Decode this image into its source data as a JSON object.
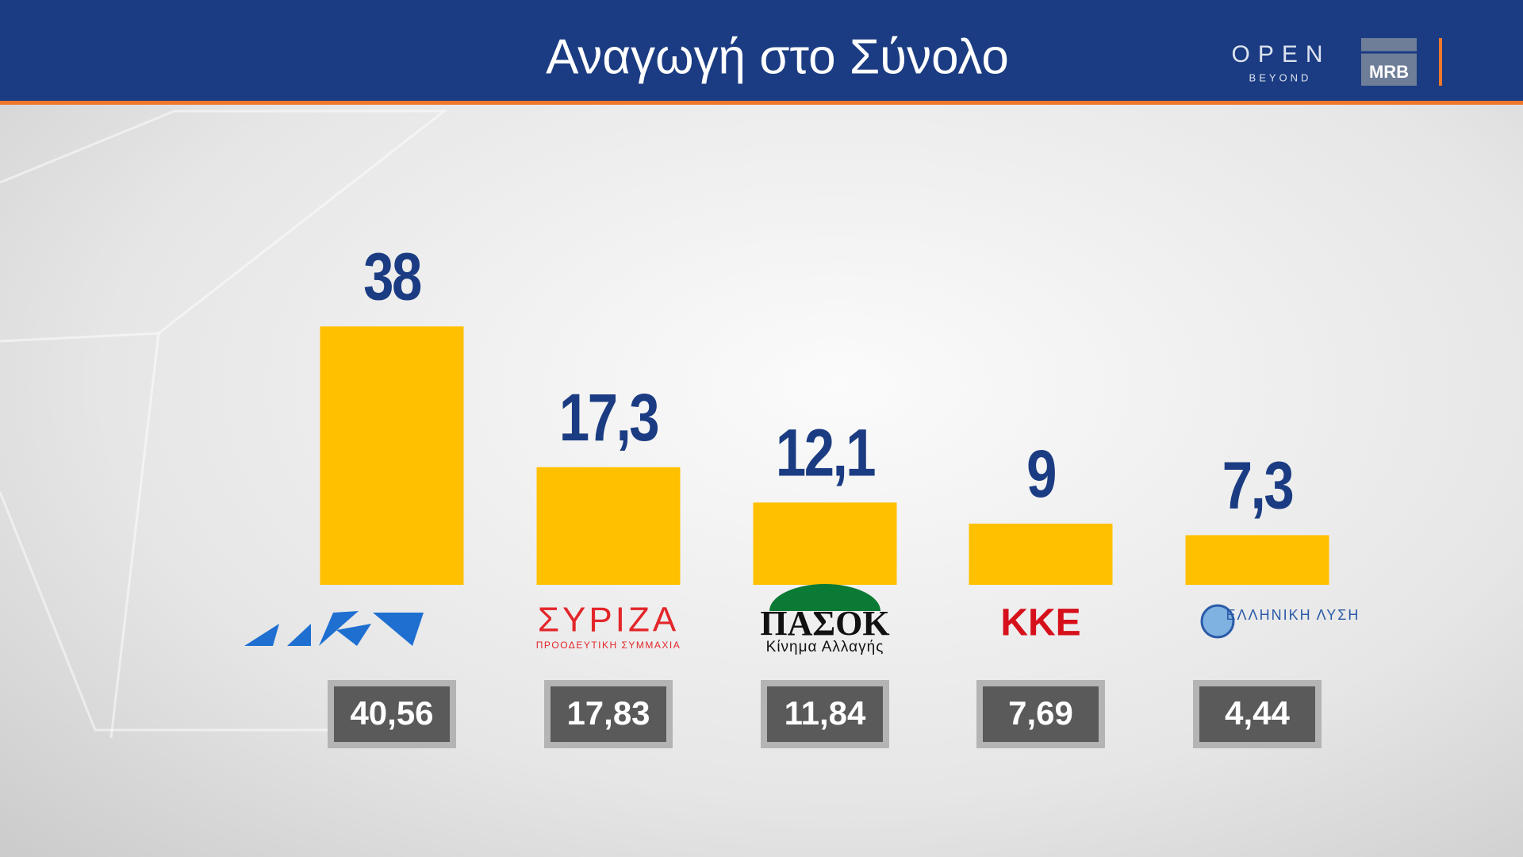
{
  "chart_data": {
    "type": "bar",
    "title": "Αναγωγή στο Σύνολο",
    "categories": [
      null,
      "ΣΥΡΙΖΑ",
      "ΠΑΣΟΚ",
      "ΚΚΕ",
      "ΕΛΛΗΝΙΚΗ ΛΥΣΗ"
    ],
    "category_sublabels": [
      null,
      "ΠΡΟΟΔΕΥΤΙΚΗ ΣΥΜΜΑΧΙΑ",
      "Κίνημα Αλλαγής",
      null,
      null
    ],
    "category_colors": [
      "#1f6fd1",
      "#e3262a",
      "#111111",
      "#d6101b",
      "#2a5aa8"
    ],
    "values": [
      38,
      17.3,
      12.1,
      9,
      7.3
    ],
    "value_labels": [
      "38",
      "17,3",
      "12,1",
      "9",
      "7,3"
    ],
    "color": "#ffc000",
    "comparison": {
      "values": [
        40.56,
        17.83,
        11.84,
        7.69,
        4.44
      ],
      "value_labels": [
        "40,56",
        "17,83",
        "11,84",
        "7,69",
        "4,44"
      ]
    }
  },
  "header": {
    "brand": "OPEN",
    "brand_tagline": "BEYOND",
    "pollster": "MRB"
  }
}
